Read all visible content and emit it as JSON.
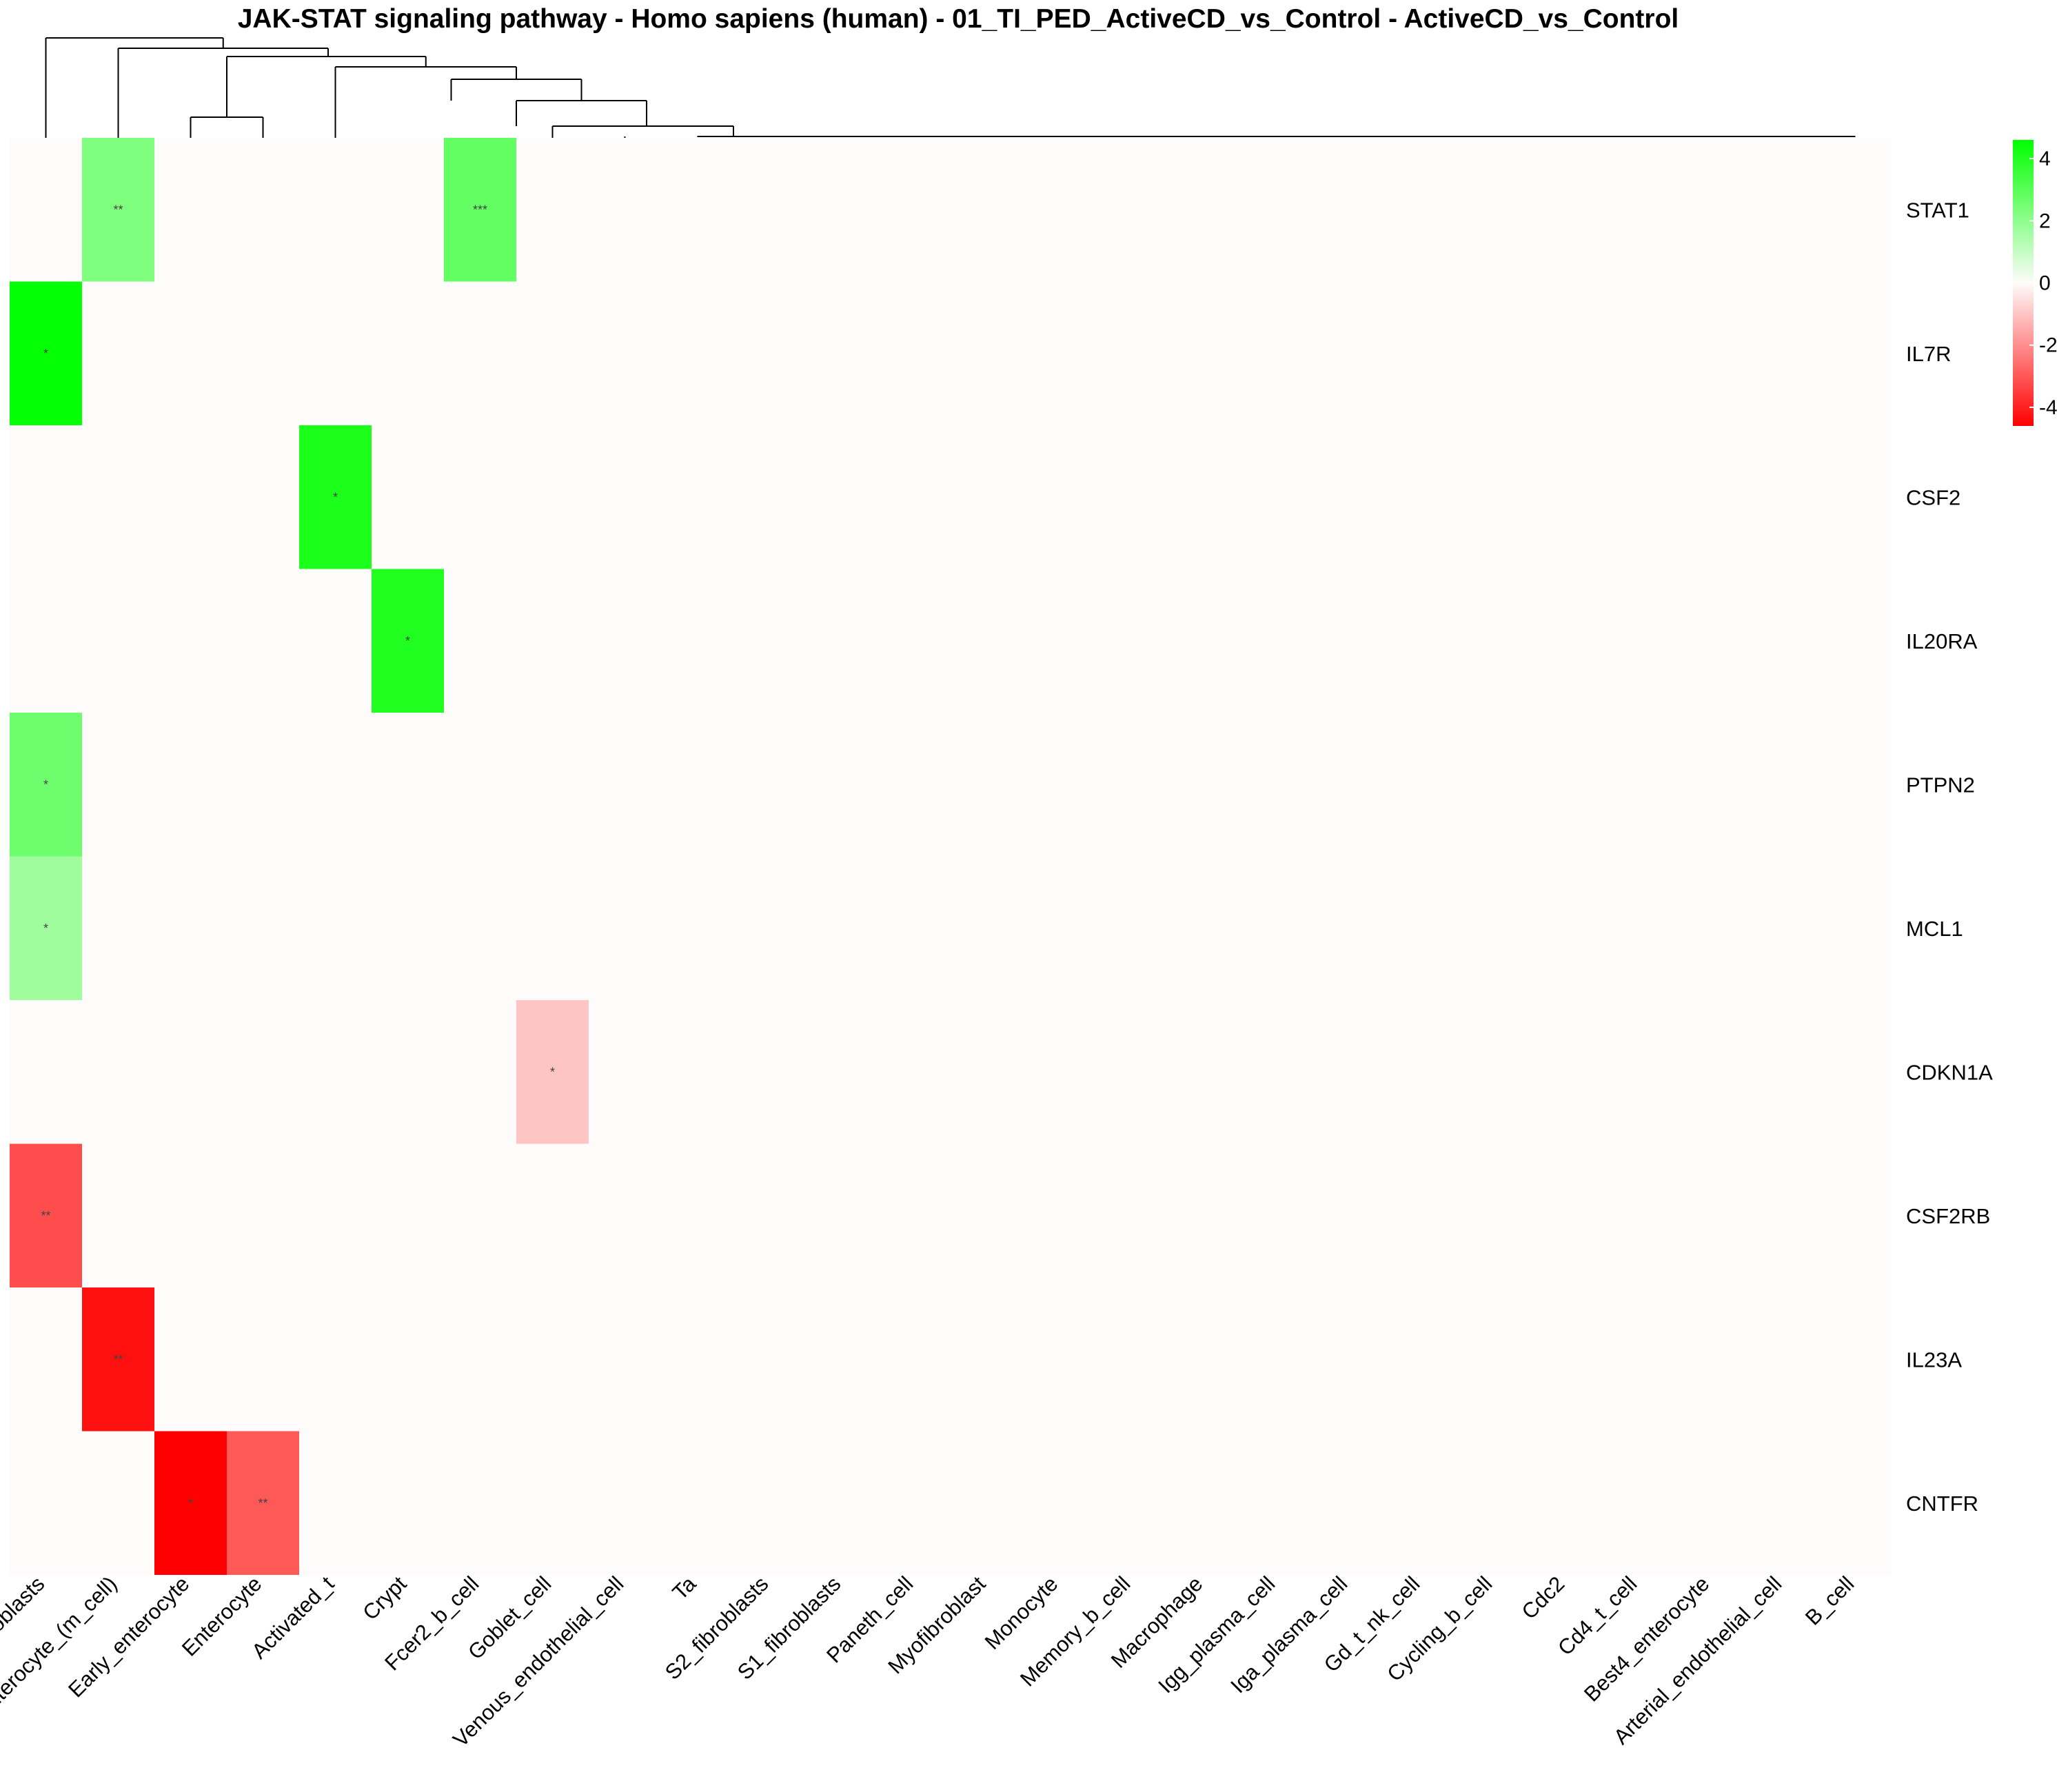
{
  "chart_data": {
    "type": "heatmap",
    "title": "JAK-STAT signaling pathway - Homo sapiens (human) - 01_TI_PED_ActiveCD_vs_Control - ActiveCD_vs_Control",
    "columns": [
      "Inflammatory_fibroblasts",
      "Enterocyte_(m_cell)",
      "Early_enterocyte",
      "Enterocyte",
      "Activated_t",
      "Crypt",
      "Fcer2_b_cell",
      "Goblet_cell",
      "Venous_endothelial_cell",
      "Ta",
      "S2_fibroblasts",
      "S1_fibroblasts",
      "Paneth_cell",
      "Myofibroblast",
      "Monocyte",
      "Memory_b_cell",
      "Macrophage",
      "Igg_plasma_cell",
      "Iga_plasma_cell",
      "Gd_t_nk_cell",
      "Cycling_b_cell",
      "Cdc2",
      "Cd4_t_cell",
      "Best4_enterocyte",
      "Arterial_endothelial_cell",
      "B_cell"
    ],
    "rows": [
      "STAT1",
      "IL7R",
      "CSF2",
      "IL20RA",
      "PTPN2",
      "MCL1",
      "CDKN1A",
      "CSF2RB",
      "IL23A",
      "CNTFR"
    ],
    "cells": [
      {
        "row": "STAT1",
        "col": "Enterocyte_(m_cell)",
        "value": 2.3,
        "label": "**"
      },
      {
        "row": "STAT1",
        "col": "Fcer2_b_cell",
        "value": 2.8,
        "label": "***"
      },
      {
        "row": "IL7R",
        "col": "Inflammatory_fibroblasts",
        "value": 4.5,
        "label": "*"
      },
      {
        "row": "CSF2",
        "col": "Activated_t",
        "value": 4.1,
        "label": "*"
      },
      {
        "row": "IL20RA",
        "col": "Crypt",
        "value": 4.0,
        "label": "*"
      },
      {
        "row": "PTPN2",
        "col": "Inflammatory_fibroblasts",
        "value": 2.6,
        "label": "*"
      },
      {
        "row": "MCL1",
        "col": "Inflammatory_fibroblasts",
        "value": 1.7,
        "label": "*"
      },
      {
        "row": "CDKN1A",
        "col": "Goblet_cell",
        "value": -1.0,
        "label": "*"
      },
      {
        "row": "CSF2RB",
        "col": "Inflammatory_fibroblasts",
        "value": -3.2,
        "label": "**"
      },
      {
        "row": "IL23A",
        "col": "Enterocyte_(m_cell)",
        "value": -4.3,
        "label": "**"
      },
      {
        "row": "CNTFR",
        "col": "Early_enterocyte",
        "value": -4.6,
        "label": "*"
      },
      {
        "row": "CNTFR",
        "col": "Enterocyte",
        "value": -3.0,
        "label": "**"
      }
    ],
    "default_value": 0,
    "legend": {
      "ticks": [
        4,
        2,
        0,
        -2,
        -4
      ],
      "range": [
        -4.6,
        4.6
      ],
      "position": "right"
    },
    "colors": {
      "low": "#ff0000",
      "mid": "#fdfcfa",
      "high": "#00ff00",
      "background": "#fdfcfa"
    },
    "xlabel": "",
    "ylabel": ""
  }
}
